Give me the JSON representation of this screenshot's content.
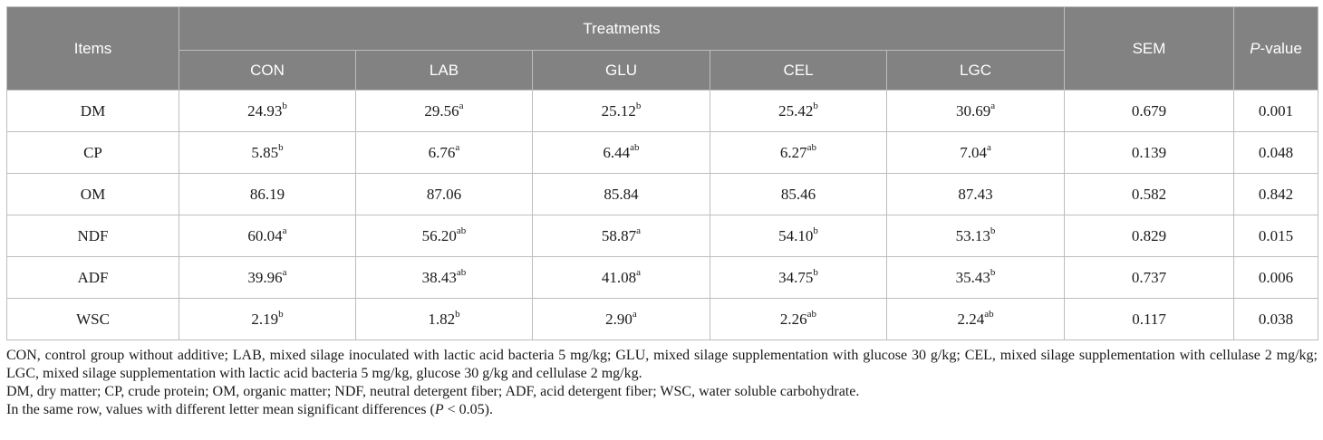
{
  "table": {
    "header": {
      "items": "Items",
      "treatments": "Treatments",
      "sem": "SEM",
      "pvalue_p": "P",
      "pvalue_rest": "-value",
      "groups": [
        "CON",
        "LAB",
        "GLU",
        "CEL",
        "LGC"
      ]
    },
    "rows": [
      {
        "item": "DM",
        "cells": [
          [
            "24.93",
            "b"
          ],
          [
            "29.56",
            "a"
          ],
          [
            "25.12",
            "b"
          ],
          [
            "25.42",
            "b"
          ],
          [
            "30.69",
            "a"
          ]
        ],
        "sem": "0.679",
        "p": "0.001"
      },
      {
        "item": "CP",
        "cells": [
          [
            "5.85",
            "b"
          ],
          [
            "6.76",
            "a"
          ],
          [
            "6.44",
            "ab"
          ],
          [
            "6.27",
            "ab"
          ],
          [
            "7.04",
            "a"
          ]
        ],
        "sem": "0.139",
        "p": "0.048"
      },
      {
        "item": "OM",
        "cells": [
          [
            "86.19",
            ""
          ],
          [
            "87.06",
            ""
          ],
          [
            "85.84",
            ""
          ],
          [
            "85.46",
            ""
          ],
          [
            "87.43",
            ""
          ]
        ],
        "sem": "0.582",
        "p": "0.842"
      },
      {
        "item": "NDF",
        "cells": [
          [
            "60.04",
            "a"
          ],
          [
            "56.20",
            "ab"
          ],
          [
            "58.87",
            "a"
          ],
          [
            "54.10",
            "b"
          ],
          [
            "53.13",
            "b"
          ]
        ],
        "sem": "0.829",
        "p": "0.015"
      },
      {
        "item": "ADF",
        "cells": [
          [
            "39.96",
            "a"
          ],
          [
            "38.43",
            "ab"
          ],
          [
            "41.08",
            "a"
          ],
          [
            "34.75",
            "b"
          ],
          [
            "35.43",
            "b"
          ]
        ],
        "sem": "0.737",
        "p": "0.006"
      },
      {
        "item": "WSC",
        "cells": [
          [
            "2.19",
            "b"
          ],
          [
            "1.82",
            "b"
          ],
          [
            "2.90",
            "a"
          ],
          [
            "2.26",
            "ab"
          ],
          [
            "2.24",
            "ab"
          ]
        ],
        "sem": "0.117",
        "p": "0.038"
      }
    ]
  },
  "notes": {
    "line1": "CON, control group without additive; LAB, mixed silage inoculated with lactic acid bacteria 5 mg/kg; GLU, mixed silage supplementation with glucose 30 g/kg; CEL, mixed silage supplementation with cellulase 2 mg/kg; LGC, mixed silage supplementation with lactic acid bacteria 5 mg/kg, glucose 30 g/kg and cellulase 2 mg/kg.",
    "line2": "DM, dry matter; CP, crude protein; OM, organic matter; NDF, neutral detergent fiber; ADF, acid detergent fiber; WSC, water soluble carbohydrate.",
    "line3_pre": "In the same row, values with different letter mean significant differences (",
    "line3_p": "P",
    "line3_post": " < 0.05)."
  },
  "colors": {
    "header_bg": "#828282",
    "header_text": "#ffffff",
    "border": "#bdbdbd"
  }
}
